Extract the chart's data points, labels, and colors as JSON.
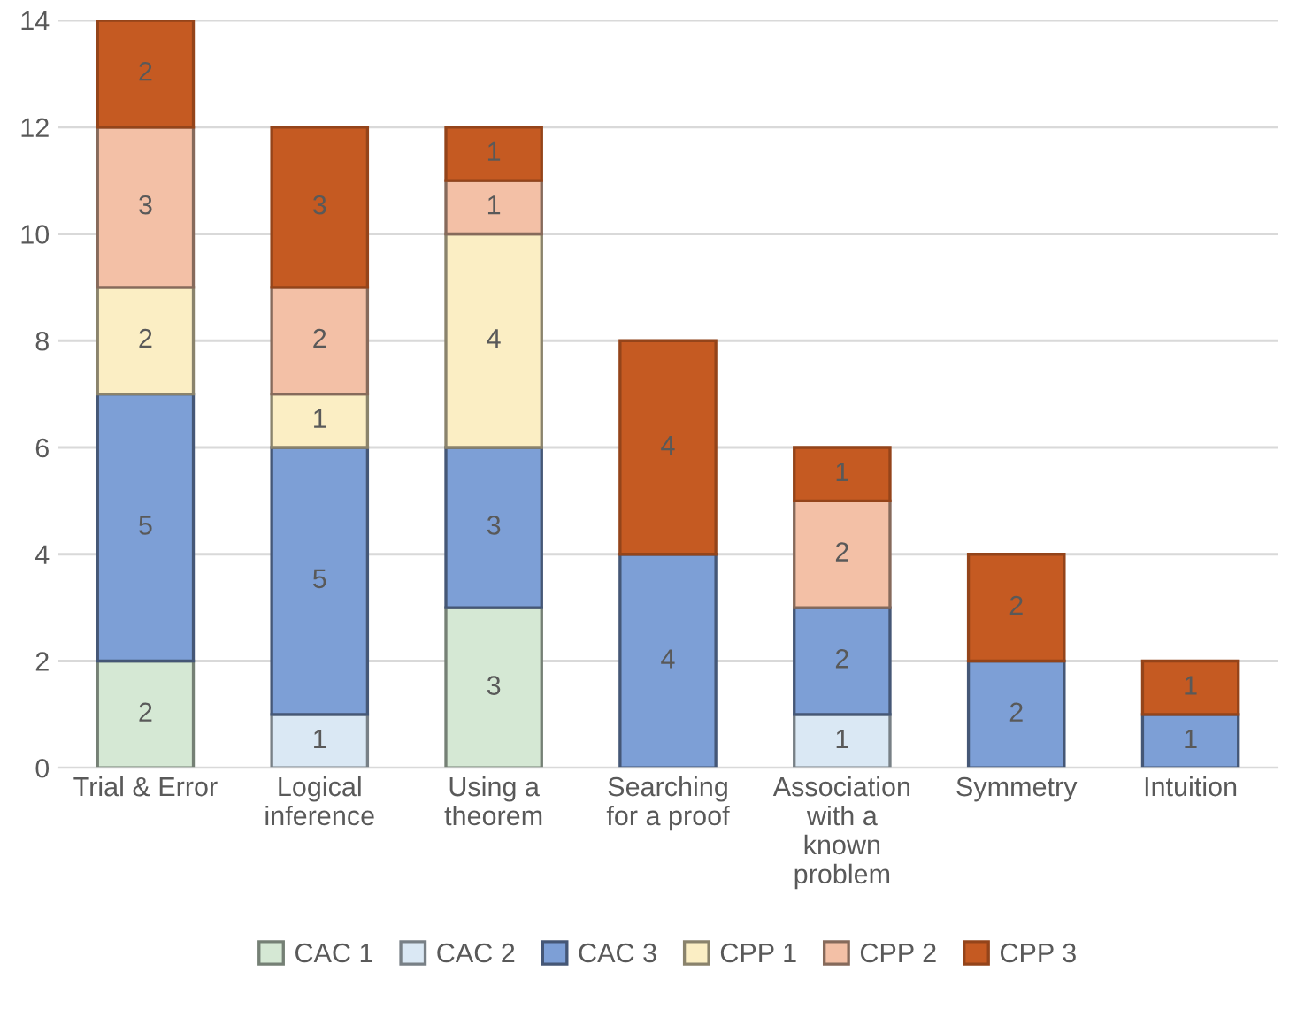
{
  "chart_data": {
    "type": "bar",
    "stacked": true,
    "categories": [
      "Trial & Error",
      "Logical\ninference",
      "Using a\ntheorem",
      "Searching\nfor a proof",
      "Association\nwith a\nknown\nproblem",
      "Symmetry",
      "Intuition"
    ],
    "series": [
      {
        "name": "CAC 1",
        "color": "#d5e8d4",
        "values": [
          2,
          null,
          3,
          null,
          null,
          null,
          null
        ]
      },
      {
        "name": "CAC 2",
        "color": "#dae8f4",
        "values": [
          null,
          1,
          null,
          null,
          1,
          null,
          null
        ]
      },
      {
        "name": "CAC 3",
        "color": "#7d9fd6",
        "values": [
          5,
          5,
          3,
          4,
          2,
          2,
          1
        ]
      },
      {
        "name": "CPP 1",
        "color": "#fbeec4",
        "values": [
          2,
          1,
          4,
          null,
          null,
          null,
          null
        ]
      },
      {
        "name": "CPP 2",
        "color": "#f3c0a6",
        "values": [
          3,
          2,
          1,
          null,
          2,
          null,
          null
        ]
      },
      {
        "name": "CPP 3",
        "color": "#c55a22",
        "values": [
          2,
          3,
          1,
          4,
          1,
          2,
          1
        ]
      }
    ],
    "ylim": [
      0,
      14
    ],
    "yticks": [
      0,
      2,
      4,
      6,
      8,
      10,
      12,
      14
    ],
    "grid": "y",
    "legend": "bottom",
    "data_labels": true
  }
}
